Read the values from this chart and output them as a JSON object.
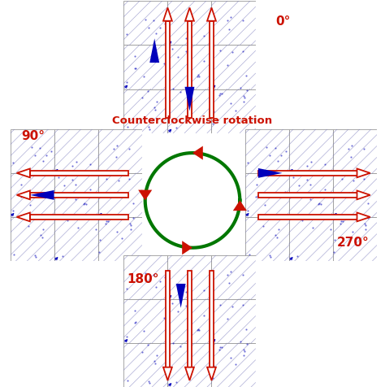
{
  "bg_color": "#ffffff",
  "grid_color": "#aaaaaa",
  "hatch_color": "#7777bb",
  "arrow_red": "#cc1100",
  "arrow_blue": "#0000bb",
  "circle_green": "#007700",
  "label_0": "0°",
  "label_90": "90°",
  "label_180": "180°",
  "label_270": "270°",
  "label_ccw": "Counterclockwise rotation",
  "fig_width": 4.74,
  "fig_height": 4.77
}
